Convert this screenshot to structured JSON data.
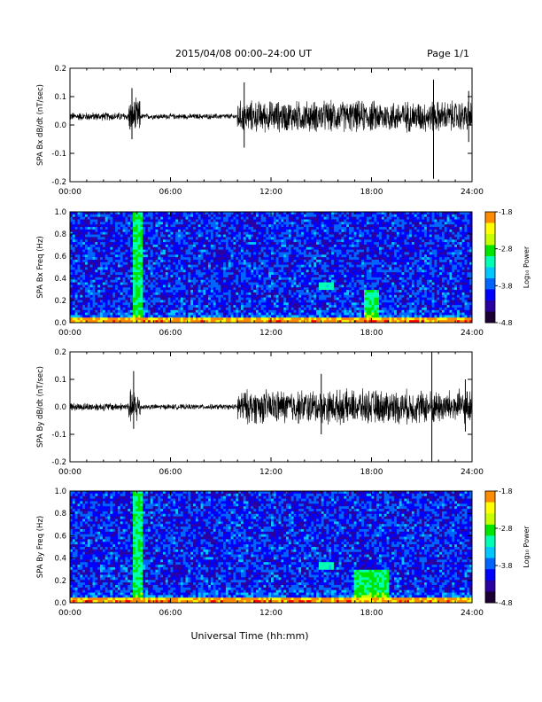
{
  "header": {
    "title": "2015/04/08  00:00–24:00 UT",
    "page": "Page 1/1"
  },
  "xlabel": "Universal Time (hh:mm)",
  "colors": {
    "trace": "#000000",
    "colormap": [
      "#1a0033",
      "#2a00a0",
      "#0000ff",
      "#0064ff",
      "#00c8ff",
      "#00ffb4",
      "#00e600",
      "#c8ff00",
      "#ffff00",
      "#ff8c00",
      "#ff0000"
    ]
  },
  "chart_data": [
    {
      "type": "line",
      "ylabel": "SPA Bx dB/dt (nT/sec)",
      "xticks": [
        "00:00",
        "06:00",
        "12:00",
        "18:00",
        "24:00"
      ],
      "xlim": [
        0,
        24
      ],
      "ylim": [
        -0.2,
        0.2
      ],
      "yticks": [
        "0.2",
        "0.1",
        "0.0",
        "-0.1",
        "-0.2"
      ],
      "baseline": 0.03,
      "activity": [
        {
          "hours": [
            0,
            3.5
          ],
          "amplitude": 0.012
        },
        {
          "hours": [
            3.5,
            4.2
          ],
          "amplitude": 0.05
        },
        {
          "hours": [
            4.2,
            10
          ],
          "amplitude": 0.008
        },
        {
          "hours": [
            10,
            24
          ],
          "amplitude": 0.045
        }
      ],
      "spikes": [
        {
          "hour": 3.7,
          "max": 0.13,
          "min": -0.05
        },
        {
          "hour": 10.4,
          "max": 0.15,
          "min": -0.08
        },
        {
          "hour": 21.7,
          "max": 0.16,
          "min": -0.19
        },
        {
          "hour": 23.8,
          "max": 0.12,
          "min": -0.06
        }
      ]
    },
    {
      "type": "heatmap",
      "ylabel": "SPA Bx Freq (Hz)",
      "xticks": [
        "00:00",
        "06:00",
        "12:00",
        "18:00",
        "24:00"
      ],
      "xlim": [
        0,
        24
      ],
      "ylim": [
        0.0,
        1.0
      ],
      "yticks": [
        "1.0",
        "0.8",
        "0.6",
        "0.4",
        "0.2",
        "0.0"
      ],
      "colorbar": {
        "label": "Log₁₀ Power",
        "ticks": [
          "-1.8",
          "-2.8",
          "-3.8",
          "-4.8"
        ],
        "range": [
          -4.8,
          -1.8
        ]
      },
      "features": [
        {
          "hours": [
            3.8,
            4.3
          ],
          "freq_max": 1.0,
          "power": -3.0
        },
        {
          "hours": [
            14.8,
            15.8
          ],
          "freq": 0.33,
          "power": -3.2
        },
        {
          "hours": [
            17.5,
            18.5
          ],
          "freq_max": 0.3,
          "power": -3.0
        },
        {
          "hours": [
            0,
            24
          ],
          "freq_max": 0.05,
          "power": -2.4
        }
      ]
    },
    {
      "type": "line",
      "ylabel": "SPA By dB/dt (nT/sec)",
      "xticks": [
        "00:00",
        "06:00",
        "12:00",
        "18:00",
        "24:00"
      ],
      "xlim": [
        0,
        24
      ],
      "ylim": [
        -0.2,
        0.2
      ],
      "yticks": [
        "0.2",
        "0.1",
        "0.0",
        "-0.1",
        "-0.2"
      ],
      "baseline": 0.0,
      "activity": [
        {
          "hours": [
            0,
            3.5
          ],
          "amplitude": 0.012
        },
        {
          "hours": [
            3.5,
            4.2
          ],
          "amplitude": 0.05
        },
        {
          "hours": [
            4.2,
            10
          ],
          "amplitude": 0.008
        },
        {
          "hours": [
            10,
            24
          ],
          "amplitude": 0.05
        }
      ],
      "spikes": [
        {
          "hour": 3.8,
          "max": 0.13,
          "min": -0.08
        },
        {
          "hour": 15.0,
          "max": 0.12,
          "min": -0.1
        },
        {
          "hour": 21.6,
          "max": 0.2,
          "min": -0.2
        },
        {
          "hour": 23.6,
          "max": 0.1,
          "min": -0.09
        }
      ]
    },
    {
      "type": "heatmap",
      "ylabel": "SPA By Freq (Hz)",
      "xticks": [
        "00:00",
        "06:00",
        "12:00",
        "18:00",
        "24:00"
      ],
      "xlim": [
        0,
        24
      ],
      "ylim": [
        0.0,
        1.0
      ],
      "yticks": [
        "1.0",
        "0.8",
        "0.6",
        "0.4",
        "0.2",
        "0.0"
      ],
      "colorbar": {
        "label": "Log₁₀ Power",
        "ticks": [
          "-1.8",
          "-2.8",
          "-3.8",
          "-4.8"
        ],
        "range": [
          -4.8,
          -1.8
        ]
      },
      "features": [
        {
          "hours": [
            3.8,
            4.3
          ],
          "freq_max": 1.0,
          "power": -3.0
        },
        {
          "hours": [
            14.8,
            15.8
          ],
          "freq": 0.33,
          "power": -3.2
        },
        {
          "hours": [
            17.0,
            19.0
          ],
          "freq_max": 0.3,
          "power": -3.0
        },
        {
          "hours": [
            0,
            24
          ],
          "freq_max": 0.05,
          "power": -2.4
        }
      ]
    }
  ]
}
